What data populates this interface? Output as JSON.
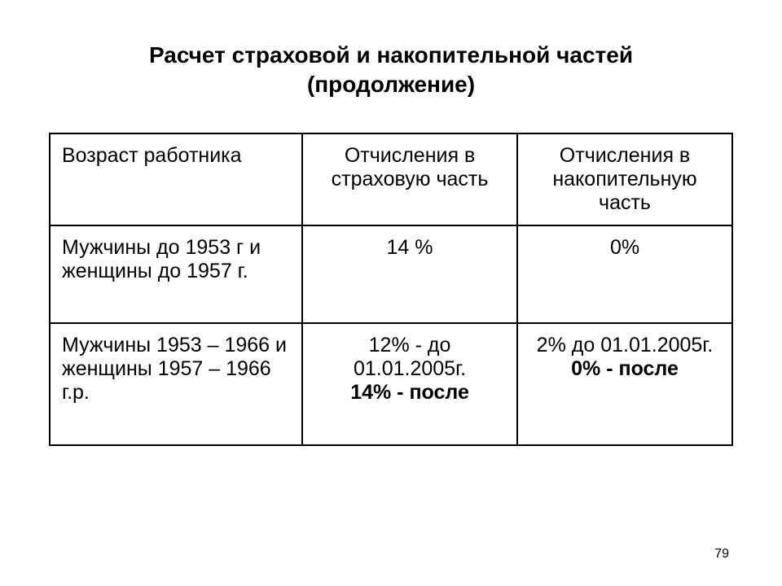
{
  "title_line1": "Расчет страховой и накопительной  частей",
  "title_line2": "(продолжение)",
  "table": {
    "headers": {
      "col1": "Возраст работника",
      "col2": "Отчисления в страховую часть",
      "col3": "Отчисления в накопительную часть"
    },
    "row1": {
      "col1": "Мужчины до 1953 г и женщины до 1957 г.",
      "col2": "14 %",
      "col3": "0%"
    },
    "row2": {
      "col1": "Мужчины  1953 – 1966 и женщины 1957 – 1966 г.р.",
      "col2_line1": "12% - до 01.01.2005г.",
      "col2_line2": "14% - после",
      "col3_line1": "2%   до 01.01.2005г.",
      "col3_line2": "0% - после"
    }
  },
  "page_number": "79",
  "colors": {
    "background": "#ffffff",
    "text": "#000000",
    "border": "#000000"
  },
  "typography": {
    "title_fontsize": 28,
    "cell_fontsize": 25,
    "page_number_fontsize": 16,
    "font_family": "Arial"
  }
}
